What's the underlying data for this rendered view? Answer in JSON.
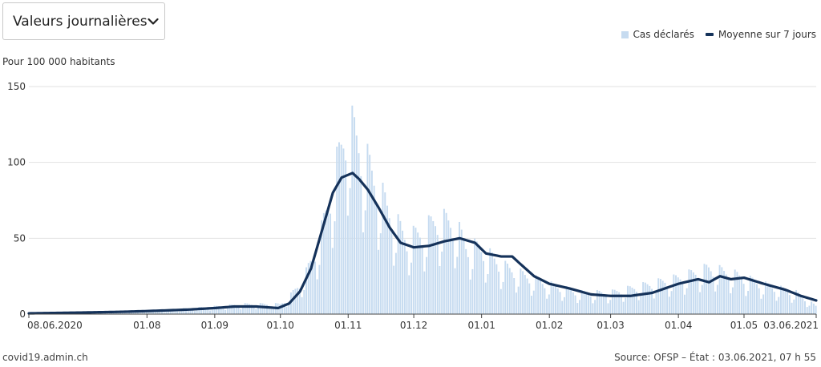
{
  "dropdown": {
    "selected": "Valeurs journalières",
    "chevron_icon": "chevron-down-icon"
  },
  "legend": {
    "bars": "Cas déclarés",
    "line": "Moyenne sur 7 jours"
  },
  "footer": {
    "left": "covid19.admin.ch",
    "right": "Source: OFSP – État : 03.06.2021, 07 h 55"
  },
  "colors": {
    "bars": "#c6dbf0",
    "line": "#15325a",
    "grid": "#e2e2e2",
    "axis": "#444444"
  },
  "chart_data": {
    "type": "bar",
    "ylabel": "Pour 100 000 habitants",
    "ylim": [
      0,
      150
    ],
    "yticks": [
      0,
      50,
      100,
      150
    ],
    "x_range": [
      "08.06.2020",
      "03.06.2021"
    ],
    "xticks": [
      "08.06.2020",
      "01.08",
      "01.09",
      "01.10",
      "01.11",
      "01.12",
      "01.01",
      "01.02",
      "01.03",
      "01.04",
      "01.05",
      "03.06.2021"
    ],
    "series": [
      {
        "name": "Cas déclarés",
        "type": "bar",
        "keypoints": [
          [
            "2020-06-08",
            0.3
          ],
          [
            "2020-06-30",
            0.8
          ],
          [
            "2020-07-15",
            1.5
          ],
          [
            "2020-08-01",
            2
          ],
          [
            "2020-08-15",
            3
          ],
          [
            "2020-09-01",
            4.5
          ],
          [
            "2020-09-15",
            6
          ],
          [
            "2020-10-01",
            6
          ],
          [
            "2020-10-05",
            10
          ],
          [
            "2020-10-12",
            22
          ],
          [
            "2020-10-19",
            45
          ],
          [
            "2020-10-26",
            85
          ],
          [
            "2020-11-01",
            118
          ],
          [
            "2020-11-04",
            110
          ],
          [
            "2020-11-10",
            92
          ],
          [
            "2020-11-20",
            62
          ],
          [
            "2020-11-28",
            46
          ],
          [
            "2020-12-05",
            50
          ],
          [
            "2020-12-12",
            58
          ],
          [
            "2020-12-20",
            55
          ],
          [
            "2020-12-25",
            42
          ],
          [
            "2021-01-01",
            40
          ],
          [
            "2021-01-10",
            30
          ],
          [
            "2021-01-20",
            24
          ],
          [
            "2021-02-01",
            18
          ],
          [
            "2021-02-15",
            13
          ],
          [
            "2021-03-01",
            13
          ],
          [
            "2021-03-15",
            17
          ],
          [
            "2021-04-01",
            22
          ],
          [
            "2021-04-15",
            28
          ],
          [
            "2021-04-25",
            25
          ],
          [
            "2021-05-10",
            18
          ],
          [
            "2021-05-25",
            13
          ],
          [
            "2021-06-03",
            5
          ]
        ]
      },
      {
        "name": "Moyenne sur 7 jours",
        "type": "line",
        "keypoints": [
          [
            "2020-06-08",
            0.5
          ],
          [
            "2020-07-01",
            1
          ],
          [
            "2020-07-20",
            1.5
          ],
          [
            "2020-08-01",
            2
          ],
          [
            "2020-08-20",
            3
          ],
          [
            "2020-09-01",
            4
          ],
          [
            "2020-09-10",
            5
          ],
          [
            "2020-09-20",
            5
          ],
          [
            "2020-09-30",
            4
          ],
          [
            "2020-10-05",
            7
          ],
          [
            "2020-10-10",
            15
          ],
          [
            "2020-10-15",
            30
          ],
          [
            "2020-10-20",
            55
          ],
          [
            "2020-10-25",
            80
          ],
          [
            "2020-10-29",
            90
          ],
          [
            "2020-11-03",
            93
          ],
          [
            "2020-11-06",
            89
          ],
          [
            "2020-11-10",
            82
          ],
          [
            "2020-11-15",
            70
          ],
          [
            "2020-11-20",
            57
          ],
          [
            "2020-11-25",
            47
          ],
          [
            "2020-12-01",
            44
          ],
          [
            "2020-12-08",
            45
          ],
          [
            "2020-12-15",
            48
          ],
          [
            "2020-12-22",
            50
          ],
          [
            "2020-12-29",
            47
          ],
          [
            "2021-01-03",
            40
          ],
          [
            "2021-01-10",
            38
          ],
          [
            "2021-01-15",
            38
          ],
          [
            "2021-01-18",
            34
          ],
          [
            "2021-01-25",
            25
          ],
          [
            "2021-02-01",
            20
          ],
          [
            "2021-02-10",
            17
          ],
          [
            "2021-02-20",
            13
          ],
          [
            "2021-03-01",
            12
          ],
          [
            "2021-03-10",
            12
          ],
          [
            "2021-03-20",
            14
          ],
          [
            "2021-04-01",
            20
          ],
          [
            "2021-04-10",
            23
          ],
          [
            "2021-04-15",
            21
          ],
          [
            "2021-04-20",
            25
          ],
          [
            "2021-04-25",
            23
          ],
          [
            "2021-05-01",
            24
          ],
          [
            "2021-05-10",
            20
          ],
          [
            "2021-05-20",
            16
          ],
          [
            "2021-05-27",
            12
          ],
          [
            "2021-06-03",
            9
          ]
        ]
      }
    ]
  }
}
